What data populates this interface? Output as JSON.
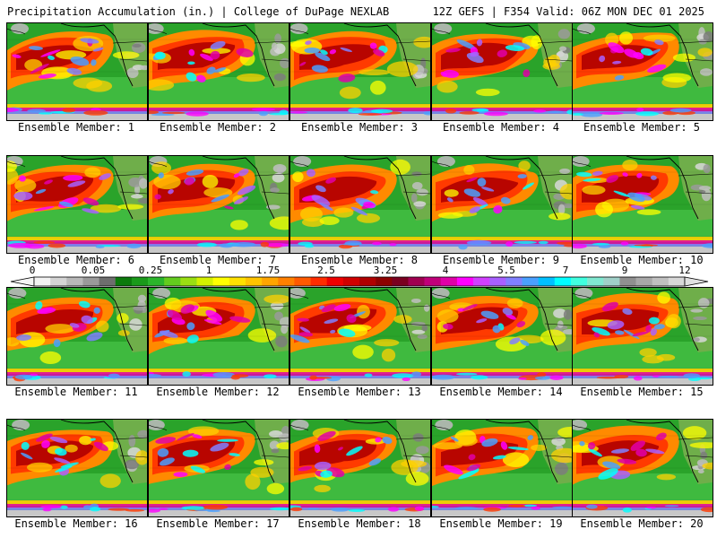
{
  "header": {
    "product": "Precipitation Accumulation (in.) | College of DuPage NEXLAB",
    "run_info": "12Z GEFS | F354 Valid: 06Z MON DEC 01 2025"
  },
  "legend": {
    "tick_labels": [
      "0",
      "0.05",
      "0.25",
      "1",
      "1.75",
      "2.5",
      "3.25",
      "4",
      "5.5",
      "7",
      "9",
      "12"
    ],
    "colors": [
      "#f2f2f2",
      "#d4d4d4",
      "#b8b8b8",
      "#9a9a9a",
      "#6e6e6e",
      "#0c7a0c",
      "#1a9a1a",
      "#2bb52b",
      "#63cc1e",
      "#9adf12",
      "#d4f000",
      "#ffff00",
      "#ffe100",
      "#ffc400",
      "#ffa500",
      "#ff8000",
      "#ff5a00",
      "#ff2c00",
      "#f00000",
      "#d00000",
      "#b00000",
      "#8e0000",
      "#7a0020",
      "#a00050",
      "#c0007a",
      "#e000a8",
      "#ff00ff",
      "#d040ff",
      "#a860ff",
      "#8080ff",
      "#4aa0ff",
      "#00c0ff",
      "#00ffff",
      "#40ffe0",
      "#80e8d0",
      "#a0d0c8",
      "#909090",
      "#a8a8a8",
      "#c0c0c0",
      "#d8d8d8"
    ]
  },
  "members": [
    {
      "label": "Ensemble Member: 1"
    },
    {
      "label": "Ensemble Member: 2"
    },
    {
      "label": "Ensemble Member: 3"
    },
    {
      "label": "Ensemble Member: 4"
    },
    {
      "label": "Ensemble Member: 5"
    },
    {
      "label": "Ensemble Member: 6"
    },
    {
      "label": "Ensemble Member: 7"
    },
    {
      "label": "Ensemble Member: 8"
    },
    {
      "label": "Ensemble Member: 9"
    },
    {
      "label": "Ensemble Member: 10"
    },
    {
      "label": "Ensemble Member: 11"
    },
    {
      "label": "Ensemble Member: 12"
    },
    {
      "label": "Ensemble Member: 13"
    },
    {
      "label": "Ensemble Member: 14"
    },
    {
      "label": "Ensemble Member: 15"
    },
    {
      "label": "Ensemble Member: 16"
    },
    {
      "label": "Ensemble Member: 17"
    },
    {
      "label": "Ensemble Member: 18"
    },
    {
      "label": "Ensemble Member: 19"
    },
    {
      "label": "Ensemble Member: 20"
    }
  ]
}
